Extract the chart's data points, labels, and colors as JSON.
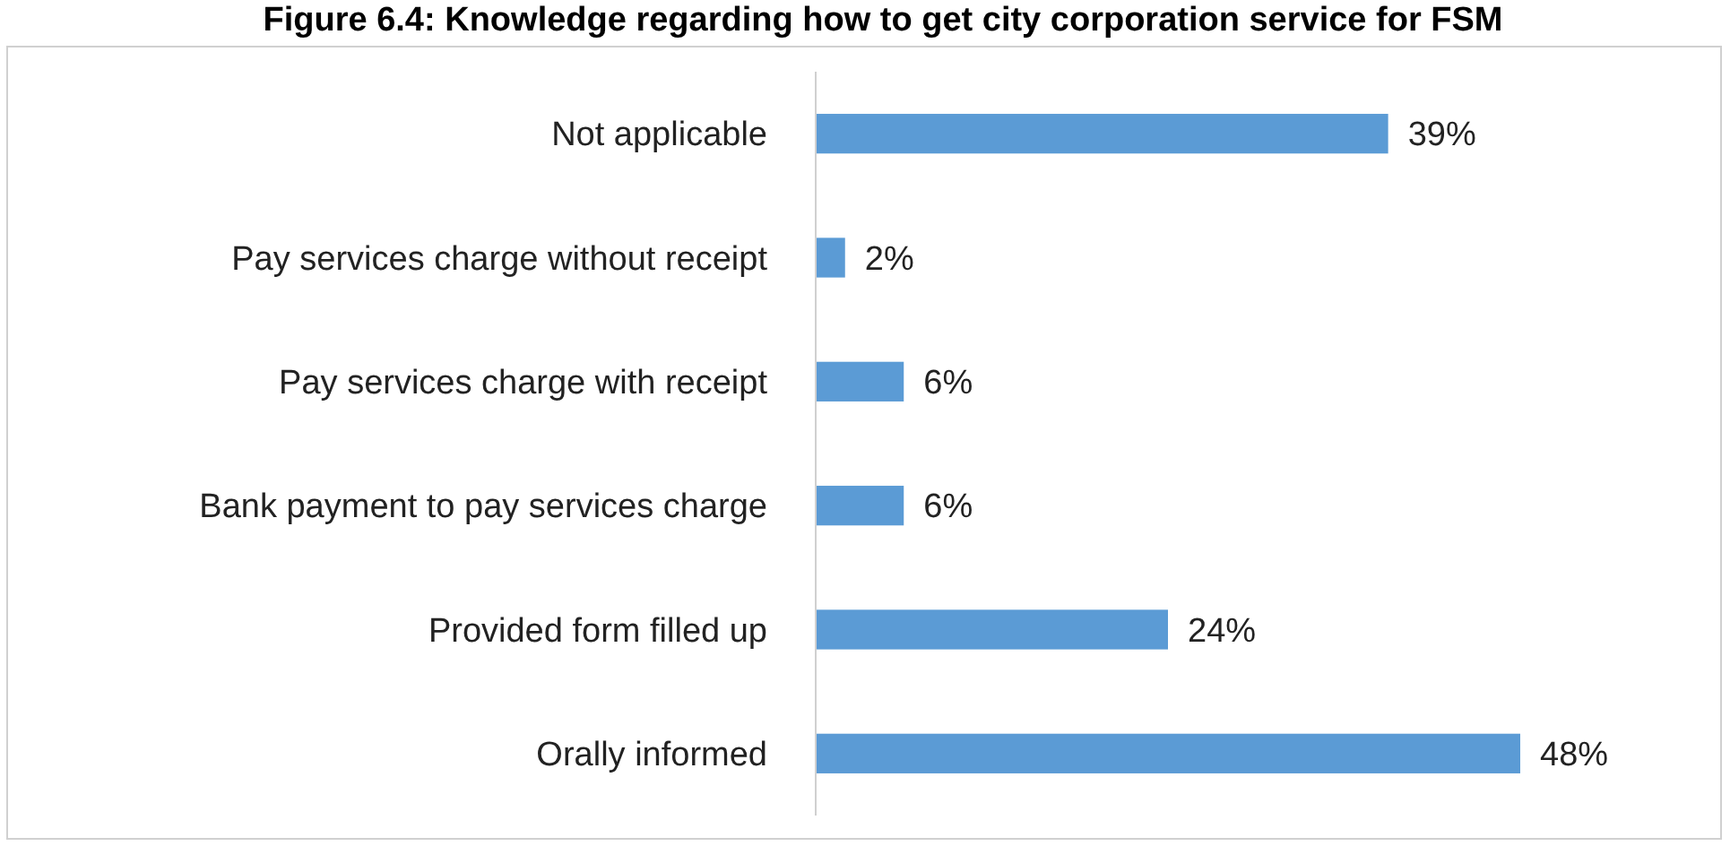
{
  "chart_data": {
    "type": "bar",
    "orientation": "horizontal",
    "title": "Figure 6.4: Knowledge regarding how to get city corporation service for FSM",
    "categories": [
      "Not applicable",
      "Pay services charge without receipt",
      "Pay services charge with receipt",
      "Bank payment to pay services charge",
      "Provided form filled up",
      "Orally informed"
    ],
    "values": [
      39,
      2,
      6,
      6,
      24,
      48
    ],
    "value_labels": [
      "39%",
      "2%",
      "6%",
      "6%",
      "24%",
      "48%"
    ],
    "color": "#5b9bd5"
  }
}
